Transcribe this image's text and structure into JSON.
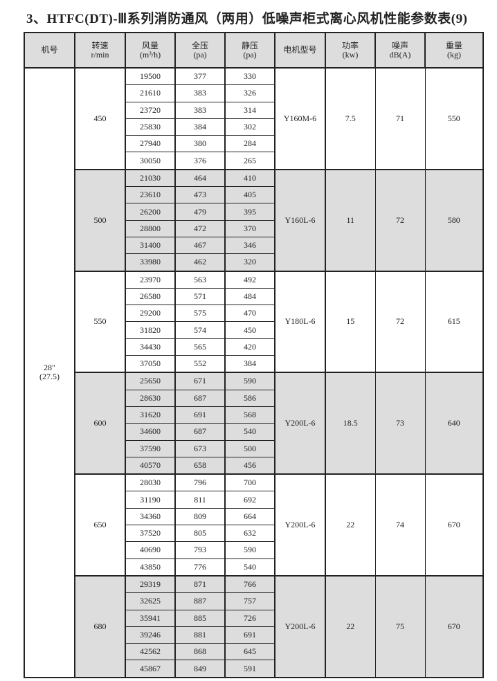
{
  "title": "3、HTFC(DT)-Ⅲ系列消防通风（两用）低噪声柜式离心风机性能参数表(9)",
  "headers": [
    {
      "l1": "机号",
      "l2": ""
    },
    {
      "l1": "转速",
      "l2": "r/min"
    },
    {
      "l1": "风量",
      "l2": "(m³/h)"
    },
    {
      "l1": "全压",
      "l2": "(pa)"
    },
    {
      "l1": "静压",
      "l2": "(pa)"
    },
    {
      "l1": "电机型号",
      "l2": ""
    },
    {
      "l1": "功率",
      "l2": "(kw)"
    },
    {
      "l1": "噪声",
      "l2": "dB(A)"
    },
    {
      "l1": "重量",
      "l2": "(kg)"
    }
  ],
  "machine_no": {
    "l1": "28″",
    "l2": "(27.5)"
  },
  "shade_color": "#dddddd",
  "groups": [
    {
      "speed": "450",
      "motor": "Y160M-6",
      "power": "7.5",
      "noise": "71",
      "weight": "550",
      "shaded": false,
      "rows": [
        [
          "19500",
          "377",
          "330"
        ],
        [
          "21610",
          "383",
          "326"
        ],
        [
          "23720",
          "383",
          "314"
        ],
        [
          "25830",
          "384",
          "302"
        ],
        [
          "27940",
          "380",
          "284"
        ],
        [
          "30050",
          "376",
          "265"
        ]
      ]
    },
    {
      "speed": "500",
      "motor": "Y160L-6",
      "power": "11",
      "noise": "72",
      "weight": "580",
      "shaded": true,
      "rows": [
        [
          "21030",
          "464",
          "410"
        ],
        [
          "23610",
          "473",
          "405"
        ],
        [
          "26200",
          "479",
          "395"
        ],
        [
          "28800",
          "472",
          "370"
        ],
        [
          "31400",
          "467",
          "346"
        ],
        [
          "33980",
          "462",
          "320"
        ]
      ]
    },
    {
      "speed": "550",
      "motor": "Y180L-6",
      "power": "15",
      "noise": "72",
      "weight": "615",
      "shaded": false,
      "rows": [
        [
          "23970",
          "563",
          "492"
        ],
        [
          "26580",
          "571",
          "484"
        ],
        [
          "29200",
          "575",
          "470"
        ],
        [
          "31820",
          "574",
          "450"
        ],
        [
          "34430",
          "565",
          "420"
        ],
        [
          "37050",
          "552",
          "384"
        ]
      ]
    },
    {
      "speed": "600",
      "motor": "Y200L-6",
      "power": "18.5",
      "noise": "73",
      "weight": "640",
      "shaded": true,
      "rows": [
        [
          "25650",
          "671",
          "590"
        ],
        [
          "28630",
          "687",
          "586"
        ],
        [
          "31620",
          "691",
          "568"
        ],
        [
          "34600",
          "687",
          "540"
        ],
        [
          "37590",
          "673",
          "500"
        ],
        [
          "40570",
          "658",
          "456"
        ]
      ]
    },
    {
      "speed": "650",
      "motor": "Y200L-6",
      "power": "22",
      "noise": "74",
      "weight": "670",
      "shaded": false,
      "rows": [
        [
          "28030",
          "796",
          "700"
        ],
        [
          "31190",
          "811",
          "692"
        ],
        [
          "34360",
          "809",
          "664"
        ],
        [
          "37520",
          "805",
          "632"
        ],
        [
          "40690",
          "793",
          "590"
        ],
        [
          "43850",
          "776",
          "540"
        ]
      ]
    },
    {
      "speed": "680",
      "motor": "Y200L-6",
      "power": "22",
      "noise": "75",
      "weight": "670",
      "shaded": true,
      "rows": [
        [
          "29319",
          "871",
          "766"
        ],
        [
          "32625",
          "887",
          "757"
        ],
        [
          "35941",
          "885",
          "726"
        ],
        [
          "39246",
          "881",
          "691"
        ],
        [
          "42562",
          "868",
          "645"
        ],
        [
          "45867",
          "849",
          "591"
        ]
      ]
    }
  ]
}
